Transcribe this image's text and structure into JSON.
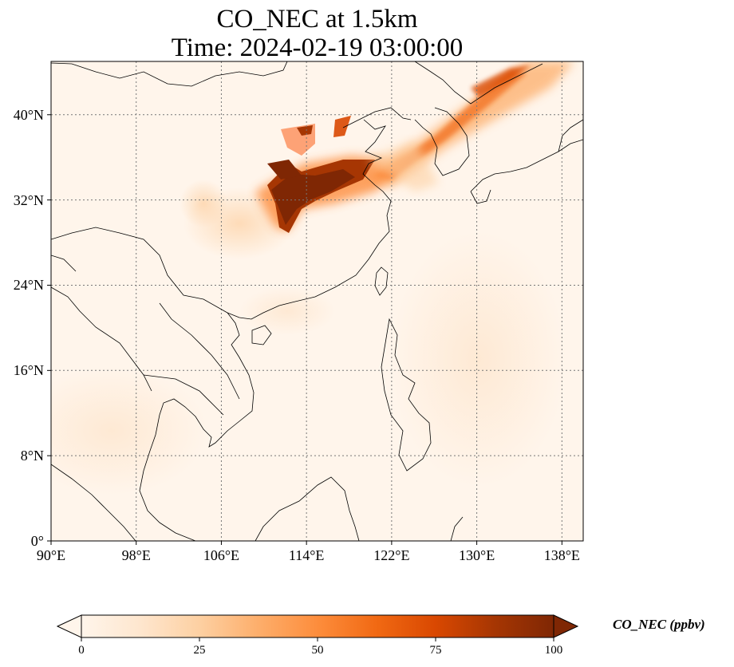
{
  "title": {
    "line1": "CO_NEC at 1.5km",
    "line2": "Time: 2024-02-19 03:00:00"
  },
  "map": {
    "lon_range": [
      90,
      140
    ],
    "lat_range": [
      0,
      45
    ],
    "lon_ticks": [
      "90°E",
      "98°E",
      "106°E",
      "114°E",
      "122°E",
      "130°E",
      "138°E"
    ],
    "lat_ticks": [
      "0°",
      "8°N",
      "16°N",
      "24°N",
      "32°N",
      "40°N"
    ],
    "gridlines": "dotted",
    "field": "CO_NEC",
    "plume": "high concentration over central/eastern China extending northeast across the Yellow Sea and Korea toward Japan",
    "colors": {
      "background": "#fff5eb",
      "land_outline": "#000000",
      "grid": "#777777"
    }
  },
  "colorbar": {
    "label": "CO_NEC (ppbv)",
    "ticks": [
      "0",
      "25",
      "50",
      "75",
      "100"
    ],
    "range": [
      0,
      100
    ],
    "extend": "both",
    "colormap": [
      "#fff5eb",
      "#fee6ce",
      "#fdd0a2",
      "#fdae6b",
      "#fd8d3c",
      "#f16913",
      "#d94801",
      "#a63603",
      "#7f2704"
    ]
  }
}
